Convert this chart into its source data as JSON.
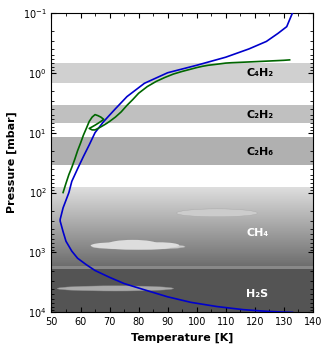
{
  "title": "",
  "xlabel": "Temperature [K]",
  "ylabel": "Pressure [mbar]",
  "xlim": [
    50,
    140
  ],
  "ylim_log": [
    0.1,
    10000
  ],
  "xticks": [
    50,
    60,
    70,
    80,
    90,
    100,
    110,
    120,
    130,
    140
  ],
  "blue_color": "#0000cc",
  "green_color": "#006600",
  "label_C4H2": "C₄H₂",
  "label_C2H2": "C₂H₂",
  "label_C2H6": "C₂H₆",
  "label_CH4": "CH₄",
  "label_H2S": "H₂S",
  "figsize": [
    3.29,
    3.5
  ],
  "dpi": 100
}
